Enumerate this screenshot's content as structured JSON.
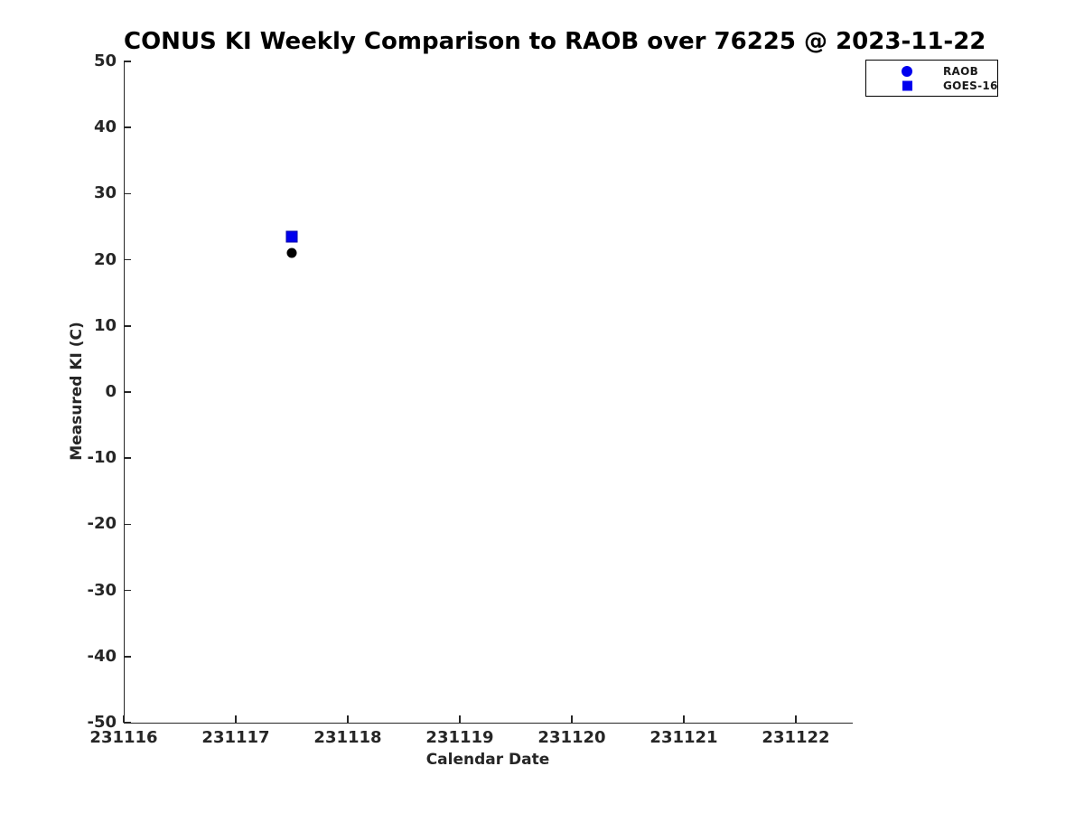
{
  "chart_data": {
    "type": "scatter",
    "title": "CONUS KI Weekly Comparison to RAOB over 76225 @ 2023-11-22",
    "xlabel": "Calendar Date",
    "ylabel": "Measured KI (C)",
    "xlim": [
      231116,
      231122.5
    ],
    "ylim": [
      -50,
      50
    ],
    "x_ticks": [
      231116,
      231117,
      231118,
      231119,
      231120,
      231121,
      231122
    ],
    "y_ticks": [
      50,
      40,
      30,
      20,
      10,
      0,
      -10,
      -20,
      -30,
      -40,
      -50
    ],
    "grid": false,
    "legend_position": "top-right-outside",
    "axis_color": "#262626",
    "series": [
      {
        "name": "RAOB",
        "marker": "circle",
        "plot_color": "#000000",
        "edge_color": "#000000",
        "legend_color": "#0000ee",
        "points": [
          {
            "x": 231117.5,
            "y": 21
          }
        ]
      },
      {
        "name": "GOES-16",
        "marker": "square",
        "plot_color": "#0000ee",
        "edge_color": "#0000aa",
        "legend_color": "#0000ee",
        "points": [
          {
            "x": 231117.5,
            "y": 23.5
          }
        ]
      }
    ]
  }
}
